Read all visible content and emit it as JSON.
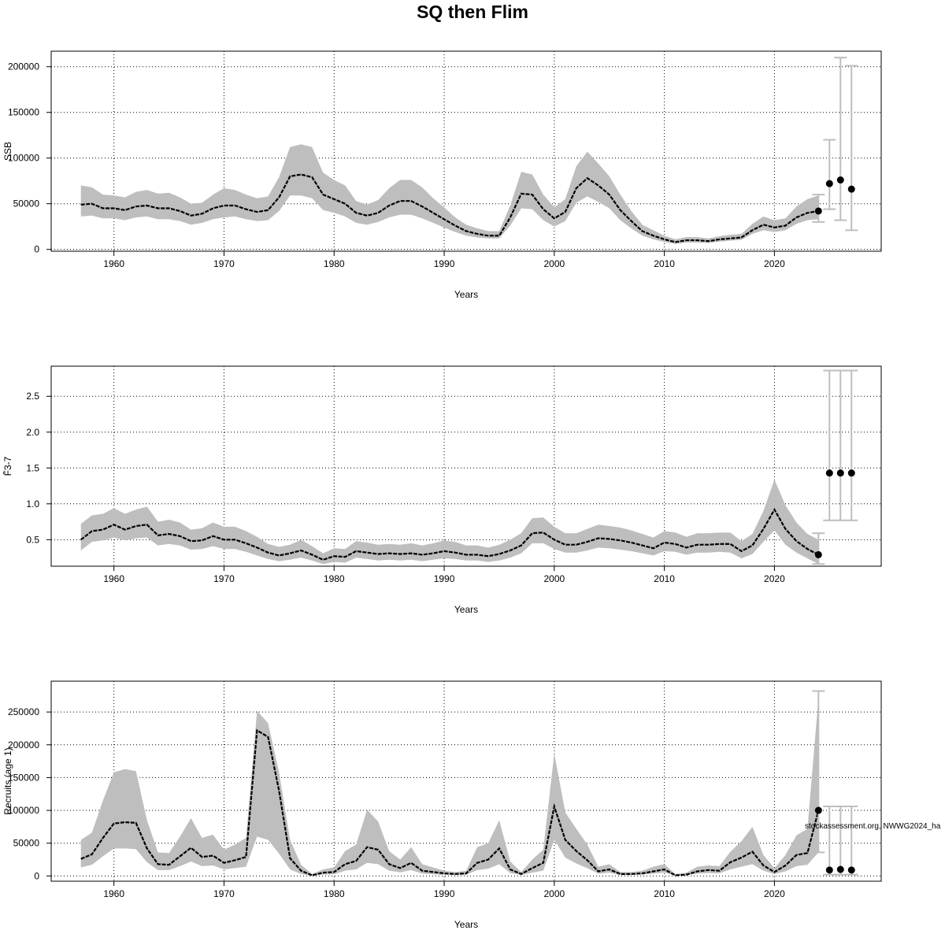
{
  "title": "SQ then Flim",
  "watermark": "stockassessment.org, NWWG2024_ha",
  "colors": {
    "band": "#bebebe",
    "line": "#000000",
    "grid": "#000000",
    "errorbar": "#bebebe"
  },
  "chart_data": [
    {
      "type": "line",
      "id": "ssb",
      "ylabel": "SSB",
      "xlabel": "Years",
      "xlim": [
        1954.3,
        2029.7
      ],
      "ylim": [
        -2000,
        217000
      ],
      "xticks": [
        1960,
        1970,
        1980,
        1990,
        2000,
        2010,
        2020
      ],
      "yticks": [
        0,
        50000,
        100000,
        150000,
        200000
      ],
      "grid": true,
      "x": [
        1957,
        1958,
        1959,
        1960,
        1961,
        1962,
        1963,
        1964,
        1965,
        1966,
        1967,
        1968,
        1969,
        1970,
        1971,
        1972,
        1973,
        1974,
        1975,
        1976,
        1977,
        1978,
        1979,
        1980,
        1981,
        1982,
        1983,
        1984,
        1985,
        1986,
        1987,
        1988,
        1989,
        1990,
        1991,
        1992,
        1993,
        1994,
        1995,
        1996,
        1997,
        1998,
        1999,
        2000,
        2001,
        2002,
        2003,
        2004,
        2005,
        2006,
        2007,
        2008,
        2009,
        2010,
        2011,
        2012,
        2013,
        2014,
        2015,
        2016,
        2017,
        2018,
        2019,
        2020,
        2021,
        2022,
        2023,
        2024
      ],
      "estimate": [
        49000,
        50000,
        45000,
        45000,
        43000,
        47000,
        48000,
        45000,
        45000,
        42000,
        37000,
        39000,
        45000,
        48000,
        48000,
        44000,
        41000,
        43000,
        57000,
        80000,
        82000,
        79000,
        60000,
        55000,
        50000,
        40000,
        37000,
        40000,
        48000,
        53000,
        53000,
        47000,
        40000,
        33000,
        26000,
        20000,
        17000,
        15000,
        15000,
        35000,
        61000,
        60000,
        44000,
        34000,
        41000,
        67000,
        78000,
        70000,
        60000,
        43000,
        31000,
        20000,
        15000,
        11000,
        8000,
        10000,
        10000,
        9000,
        11000,
        12000,
        13000,
        21000,
        27000,
        24000,
        26000,
        35000,
        40000,
        42000
      ],
      "lower": [
        36000,
        37000,
        34000,
        34000,
        32000,
        35000,
        36000,
        33000,
        33000,
        31000,
        27000,
        29000,
        33000,
        35000,
        36000,
        33000,
        31000,
        32000,
        42000,
        59000,
        59000,
        56000,
        43000,
        40000,
        36000,
        29000,
        27000,
        30000,
        35000,
        38000,
        38000,
        34000,
        29000,
        24000,
        19000,
        15000,
        13000,
        12000,
        12000,
        26000,
        45000,
        44000,
        32000,
        25000,
        31000,
        51000,
        58000,
        52000,
        45000,
        32000,
        23000,
        15000,
        11000,
        8000,
        6000,
        7500,
        7500,
        7000,
        8500,
        9500,
        10500,
        17000,
        21000,
        19000,
        21000,
        28000,
        32000,
        33000
      ],
      "upper": [
        70000,
        68000,
        60000,
        59000,
        57000,
        63000,
        65000,
        61000,
        62000,
        57000,
        50000,
        51000,
        60000,
        67000,
        65000,
        60000,
        56000,
        58000,
        79000,
        112000,
        115000,
        112000,
        84000,
        76000,
        70000,
        53000,
        49000,
        54000,
        67000,
        76000,
        76000,
        68000,
        56000,
        46000,
        35000,
        27000,
        23000,
        20000,
        20000,
        48000,
        85000,
        82000,
        60000,
        46000,
        55000,
        91000,
        107000,
        94000,
        80000,
        60000,
        42000,
        27000,
        21000,
        15000,
        11000,
        13500,
        13500,
        12000,
        14500,
        16000,
        17000,
        28000,
        36000,
        32000,
        34000,
        47000,
        55000,
        59000
      ],
      "projection": {
        "x": [
          2024,
          2025,
          2026,
          2027
        ],
        "values": [
          42000,
          72000,
          76000,
          66000
        ],
        "lower": [
          30000,
          44000,
          32000,
          21000
        ],
        "upper": [
          60000,
          120000,
          210000,
          201000
        ]
      }
    },
    {
      "type": "line",
      "id": "fbar",
      "ylabel": "F̄3-7",
      "xlabel": "Years",
      "xlim": [
        1954.3,
        2029.7
      ],
      "ylim": [
        0.13,
        2.92
      ],
      "xticks": [
        1960,
        1970,
        1980,
        1990,
        2000,
        2010,
        2020
      ],
      "yticks": [
        0.5,
        1.0,
        1.5,
        2.0,
        2.5
      ],
      "ytick_labels": [
        "0.5",
        "1.0",
        "1.5",
        "2.0",
        "2.5"
      ],
      "grid": true,
      "x": [
        1957,
        1958,
        1959,
        1960,
        1961,
        1962,
        1963,
        1964,
        1965,
        1966,
        1967,
        1968,
        1969,
        1970,
        1971,
        1972,
        1973,
        1974,
        1975,
        1976,
        1977,
        1978,
        1979,
        1980,
        1981,
        1982,
        1983,
        1984,
        1985,
        1986,
        1987,
        1988,
        1989,
        1990,
        1991,
        1992,
        1993,
        1994,
        1995,
        1996,
        1997,
        1998,
        1999,
        2000,
        2001,
        2002,
        2003,
        2004,
        2005,
        2006,
        2007,
        2008,
        2009,
        2010,
        2011,
        2012,
        2013,
        2014,
        2015,
        2016,
        2017,
        2018,
        2019,
        2020,
        2021,
        2022,
        2023,
        2024
      ],
      "estimate": [
        0.5,
        0.62,
        0.64,
        0.71,
        0.64,
        0.69,
        0.71,
        0.56,
        0.58,
        0.55,
        0.48,
        0.49,
        0.55,
        0.5,
        0.5,
        0.45,
        0.39,
        0.32,
        0.28,
        0.31,
        0.35,
        0.29,
        0.22,
        0.27,
        0.26,
        0.34,
        0.32,
        0.3,
        0.31,
        0.3,
        0.31,
        0.29,
        0.31,
        0.34,
        0.32,
        0.29,
        0.29,
        0.27,
        0.3,
        0.35,
        0.42,
        0.59,
        0.6,
        0.5,
        0.43,
        0.43,
        0.47,
        0.52,
        0.51,
        0.49,
        0.46,
        0.42,
        0.38,
        0.46,
        0.44,
        0.39,
        0.43,
        0.43,
        0.44,
        0.44,
        0.34,
        0.42,
        0.65,
        0.92,
        0.65,
        0.48,
        0.37,
        0.29
      ],
      "lower": [
        0.35,
        0.47,
        0.49,
        0.53,
        0.49,
        0.52,
        0.53,
        0.42,
        0.44,
        0.42,
        0.36,
        0.37,
        0.41,
        0.37,
        0.37,
        0.33,
        0.28,
        0.23,
        0.2,
        0.22,
        0.25,
        0.21,
        0.16,
        0.19,
        0.18,
        0.25,
        0.23,
        0.21,
        0.22,
        0.21,
        0.22,
        0.2,
        0.22,
        0.24,
        0.23,
        0.21,
        0.21,
        0.19,
        0.21,
        0.25,
        0.31,
        0.45,
        0.45,
        0.37,
        0.32,
        0.32,
        0.35,
        0.39,
        0.38,
        0.36,
        0.34,
        0.31,
        0.28,
        0.34,
        0.33,
        0.29,
        0.32,
        0.32,
        0.33,
        0.32,
        0.24,
        0.3,
        0.47,
        0.63,
        0.43,
        0.32,
        0.24,
        0.16
      ],
      "upper": [
        0.72,
        0.84,
        0.86,
        0.94,
        0.86,
        0.92,
        0.96,
        0.75,
        0.78,
        0.74,
        0.64,
        0.66,
        0.74,
        0.68,
        0.68,
        0.62,
        0.54,
        0.44,
        0.4,
        0.43,
        0.5,
        0.41,
        0.31,
        0.38,
        0.37,
        0.48,
        0.46,
        0.43,
        0.44,
        0.43,
        0.45,
        0.42,
        0.45,
        0.49,
        0.47,
        0.42,
        0.42,
        0.39,
        0.43,
        0.5,
        0.59,
        0.8,
        0.81,
        0.68,
        0.59,
        0.59,
        0.65,
        0.71,
        0.69,
        0.67,
        0.63,
        0.58,
        0.53,
        0.62,
        0.6,
        0.54,
        0.59,
        0.59,
        0.6,
        0.6,
        0.48,
        0.58,
        0.9,
        1.34,
        0.98,
        0.74,
        0.58,
        0.5
      ],
      "projection": {
        "x": [
          2024,
          2025,
          2026,
          2027
        ],
        "values": [
          0.29,
          1.43,
          1.43,
          1.43
        ],
        "lower": [
          0.16,
          0.77,
          0.77,
          0.77
        ],
        "upper": [
          0.59,
          2.86,
          2.86,
          2.86
        ]
      }
    },
    {
      "type": "line",
      "id": "recruits",
      "ylabel": "Recruits (age 1)",
      "xlabel": "Years",
      "xlim": [
        1954.3,
        2029.7
      ],
      "ylim": [
        -8000,
        297000
      ],
      "xticks": [
        1960,
        1970,
        1980,
        1990,
        2000,
        2010,
        2020
      ],
      "yticks": [
        0,
        50000,
        100000,
        150000,
        200000,
        250000
      ],
      "grid": true,
      "x": [
        1957,
        1958,
        1959,
        1960,
        1961,
        1962,
        1963,
        1964,
        1965,
        1966,
        1967,
        1968,
        1969,
        1970,
        1971,
        1972,
        1973,
        1974,
        1975,
        1976,
        1977,
        1978,
        1979,
        1980,
        1981,
        1982,
        1983,
        1984,
        1985,
        1986,
        1987,
        1988,
        1989,
        1990,
        1991,
        1992,
        1993,
        1994,
        1995,
        1996,
        1997,
        1998,
        1999,
        2000,
        2001,
        2002,
        2003,
        2004,
        2005,
        2006,
        2007,
        2008,
        2009,
        2010,
        2011,
        2012,
        2013,
        2014,
        2015,
        2016,
        2017,
        2018,
        2019,
        2020,
        2021,
        2022,
        2023,
        2024
      ],
      "estimate": [
        26000,
        33000,
        58000,
        80000,
        82000,
        81000,
        42000,
        18000,
        17000,
        30000,
        43000,
        29000,
        31000,
        20000,
        24000,
        29000,
        222000,
        212000,
        130000,
        27000,
        8000,
        1000,
        5000,
        6000,
        18000,
        23000,
        44000,
        40000,
        18000,
        12000,
        20000,
        8000,
        6000,
        4000,
        3000,
        4000,
        20000,
        25000,
        42000,
        10000,
        3000,
        12000,
        20000,
        106000,
        55000,
        38000,
        24000,
        7000,
        10000,
        3000,
        3000,
        4000,
        7000,
        10000,
        1000,
        2000,
        7000,
        9000,
        8000,
        21000,
        28000,
        37000,
        16000,
        6000,
        16000,
        32000,
        35000,
        100000
      ],
      "lower": [
        13000,
        17000,
        30000,
        42000,
        42000,
        41000,
        21000,
        9000,
        9000,
        15000,
        22000,
        15000,
        16000,
        10000,
        12000,
        14000,
        60000,
        55000,
        34000,
        10000,
        3000,
        400,
        2000,
        2500,
        8000,
        10000,
        20000,
        18000,
        8000,
        5500,
        9000,
        3500,
        2500,
        1800,
        1300,
        1800,
        9000,
        11000,
        18000,
        4500,
        1300,
        5000,
        8000,
        55000,
        28000,
        19000,
        12000,
        3500,
        5000,
        1500,
        1500,
        2000,
        3500,
        5000,
        500,
        1000,
        3500,
        4500,
        4000,
        10000,
        14000,
        18000,
        8000,
        3000,
        7000,
        15000,
        17000,
        36000
      ],
      "upper": [
        55000,
        66000,
        115000,
        158000,
        163000,
        160000,
        85000,
        36000,
        35000,
        60000,
        88000,
        58000,
        63000,
        40000,
        48000,
        58000,
        252000,
        233000,
        158000,
        55000,
        17000,
        3000,
        10000,
        13000,
        38000,
        48000,
        101000,
        83000,
        38000,
        25000,
        44000,
        18000,
        13000,
        8000,
        6000,
        8000,
        44000,
        50000,
        85000,
        22000,
        6000,
        25000,
        40000,
        187000,
        97000,
        72000,
        48000,
        14000,
        18000,
        6000,
        6000,
        8000,
        14000,
        18000,
        3000,
        5000,
        14000,
        16000,
        15000,
        37000,
        53000,
        75000,
        32000,
        12000,
        32000,
        62000,
        72000,
        272000
      ],
      "projection": {
        "x": [
          2024,
          2025,
          2026,
          2027
        ],
        "values": [
          100000,
          9000,
          10000,
          9000
        ],
        "lower": [
          36000,
          2000,
          2000,
          2000
        ],
        "upper": [
          282000,
          106000,
          106000,
          106000
        ]
      }
    }
  ]
}
